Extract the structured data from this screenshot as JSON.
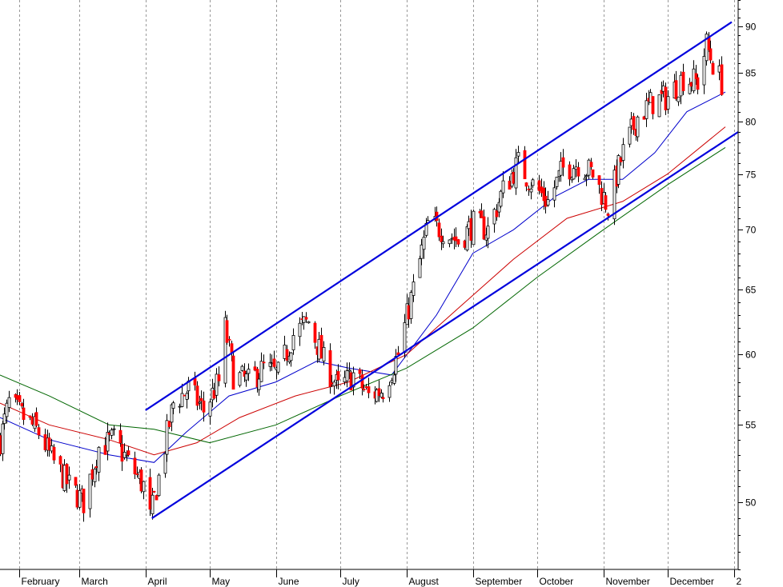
{
  "chart_data": {
    "type": "candlestick",
    "title": "",
    "xlabel": "",
    "ylabel": "",
    "y_scale": "log",
    "ylim": [
      46,
      93
    ],
    "grid": {
      "vertical": true,
      "horizontal": false
    },
    "y_ticks": [
      {
        "value": 50,
        "label": "50"
      },
      {
        "value": 55,
        "label": "55"
      },
      {
        "value": 60,
        "label": "60"
      },
      {
        "value": 65,
        "label": "65"
      },
      {
        "value": 70,
        "label": "70"
      },
      {
        "value": 75,
        "label": "75"
      },
      {
        "value": 80,
        "label": "80"
      },
      {
        "value": 85,
        "label": "85"
      },
      {
        "value": 90,
        "label": "90"
      }
    ],
    "x_ticks": [
      {
        "date": "2006-02-01",
        "label": "February"
      },
      {
        "date": "2006-03-01",
        "label": "March"
      },
      {
        "date": "2006-04-01",
        "label": "April"
      },
      {
        "date": "2006-05-01",
        "label": "May"
      },
      {
        "date": "2006-06-01",
        "label": "June"
      },
      {
        "date": "2006-07-01",
        "label": "July"
      },
      {
        "date": "2006-08-01",
        "label": "August"
      },
      {
        "date": "2006-09-01",
        "label": "September"
      },
      {
        "date": "2006-10-01",
        "label": "October"
      },
      {
        "date": "2006-11-01",
        "label": "November"
      },
      {
        "date": "2006-12-01",
        "label": "December"
      },
      {
        "date": "2007-01-01",
        "label": "2"
      }
    ],
    "xlim": [
      "2006-01-23",
      "2007-01-03"
    ],
    "colors": {
      "up": "#ffffff",
      "down": "#ff0000",
      "wick": "#000000",
      "ma_short": "#0000cc",
      "ma_mid": "#cc0000",
      "ma_long": "#006600",
      "channel": "#0000dd",
      "grid": "#999999"
    },
    "price_points": [
      [
        "2006-01-23",
        54.0
      ],
      [
        "2006-01-27",
        56.5
      ],
      [
        "2006-02-03",
        55.5
      ],
      [
        "2006-02-10",
        54.5
      ],
      [
        "2006-02-17",
        52.5
      ],
      [
        "2006-02-24",
        51.0
      ],
      [
        "2006-03-03",
        50.0
      ],
      [
        "2006-03-10",
        53.5
      ],
      [
        "2006-03-17",
        54.0
      ],
      [
        "2006-03-24",
        52.5
      ],
      [
        "2006-03-31",
        51.0
      ],
      [
        "2006-04-03",
        49.0
      ],
      [
        "2006-04-07",
        51.5
      ],
      [
        "2006-04-14",
        56.5
      ],
      [
        "2006-04-21",
        57.5
      ],
      [
        "2006-04-28",
        56.0
      ],
      [
        "2006-05-05",
        58.0
      ],
      [
        "2006-05-08",
        62.0
      ],
      [
        "2006-05-12",
        58.5
      ],
      [
        "2006-05-19",
        58.0
      ],
      [
        "2006-05-26",
        59.0
      ],
      [
        "2006-06-02",
        58.5
      ],
      [
        "2006-06-09",
        61.5
      ],
      [
        "2006-06-16",
        62.5
      ],
      [
        "2006-06-23",
        59.5
      ],
      [
        "2006-06-30",
        57.5
      ],
      [
        "2006-07-07",
        58.5
      ],
      [
        "2006-07-14",
        57.0
      ],
      [
        "2006-07-21",
        57.5
      ],
      [
        "2006-07-28",
        60.0
      ],
      [
        "2006-08-04",
        65.0
      ],
      [
        "2006-08-11",
        70.5
      ],
      [
        "2006-08-18",
        70.0
      ],
      [
        "2006-08-25",
        69.0
      ],
      [
        "2006-09-01",
        70.5
      ],
      [
        "2006-09-08",
        70.0
      ],
      [
        "2006-09-15",
        73.5
      ],
      [
        "2006-09-22",
        76.0
      ],
      [
        "2006-09-29",
        74.0
      ],
      [
        "2006-10-06",
        72.5
      ],
      [
        "2006-10-13",
        75.5
      ],
      [
        "2006-10-20",
        76.0
      ],
      [
        "2006-10-27",
        75.0
      ],
      [
        "2006-11-03",
        72.0
      ],
      [
        "2006-11-10",
        77.0
      ],
      [
        "2006-11-17",
        80.5
      ],
      [
        "2006-11-24",
        82.0
      ],
      [
        "2006-12-01",
        82.5
      ],
      [
        "2006-12-08",
        84.5
      ],
      [
        "2006-12-15",
        84.0
      ],
      [
        "2006-12-19",
        88.0
      ],
      [
        "2006-12-22",
        86.0
      ],
      [
        "2006-12-26",
        84.0
      ]
    ],
    "series": [
      {
        "name": "",
        "role": "ma_short",
        "points": [
          [
            "2006-01-23",
            55.5
          ],
          [
            "2006-02-15",
            54.0
          ],
          [
            "2006-03-15",
            53.0
          ],
          [
            "2006-04-05",
            52.5
          ],
          [
            "2006-04-20",
            54.5
          ],
          [
            "2006-05-10",
            57.0
          ],
          [
            "2006-06-01",
            58.0
          ],
          [
            "2006-06-20",
            59.5
          ],
          [
            "2006-07-05",
            59.0
          ],
          [
            "2006-07-25",
            58.5
          ],
          [
            "2006-08-15",
            63.0
          ],
          [
            "2006-09-01",
            68.0
          ],
          [
            "2006-09-20",
            70.0
          ],
          [
            "2006-10-10",
            73.0
          ],
          [
            "2006-10-25",
            74.5
          ],
          [
            "2006-11-10",
            74.5
          ],
          [
            "2006-11-25",
            77.0
          ],
          [
            "2006-12-10",
            81.0
          ],
          [
            "2006-12-28",
            83.0
          ]
        ]
      },
      {
        "name": "",
        "role": "ma_mid",
        "points": [
          [
            "2006-01-23",
            56.5
          ],
          [
            "2006-02-15",
            55.0
          ],
          [
            "2006-03-15",
            54.0
          ],
          [
            "2006-04-05",
            53.0
          ],
          [
            "2006-04-25",
            53.8
          ],
          [
            "2006-05-15",
            55.5
          ],
          [
            "2006-06-10",
            57.0
          ],
          [
            "2006-07-05",
            58.0
          ],
          [
            "2006-08-01",
            60.0
          ],
          [
            "2006-08-25",
            63.5
          ],
          [
            "2006-09-20",
            67.5
          ],
          [
            "2006-10-15",
            71.0
          ],
          [
            "2006-11-10",
            72.5
          ],
          [
            "2006-12-01",
            75.0
          ],
          [
            "2006-12-28",
            79.5
          ]
        ]
      },
      {
        "name": "",
        "role": "ma_long",
        "points": [
          [
            "2006-01-23",
            58.5
          ],
          [
            "2006-02-15",
            57.0
          ],
          [
            "2006-03-15",
            55.0
          ],
          [
            "2006-04-05",
            54.7
          ],
          [
            "2006-05-01",
            53.8
          ],
          [
            "2006-06-01",
            55.0
          ],
          [
            "2006-07-01",
            57.0
          ],
          [
            "2006-08-01",
            59.0
          ],
          [
            "2006-09-01",
            62.0
          ],
          [
            "2006-10-01",
            66.0
          ],
          [
            "2006-11-01",
            70.0
          ],
          [
            "2006-12-01",
            74.0
          ],
          [
            "2006-12-28",
            77.5
          ]
        ]
      }
    ],
    "trendlines": [
      {
        "name": "",
        "role": "channel_upper",
        "start": [
          "2006-04-01",
          56.0
        ],
        "end": [
          "2006-12-31",
          90.5
        ]
      },
      {
        "name": "",
        "role": "channel_lower",
        "start": [
          "2006-04-04",
          49.0
        ],
        "end": [
          "2007-01-03",
          79.0
        ]
      }
    ]
  }
}
